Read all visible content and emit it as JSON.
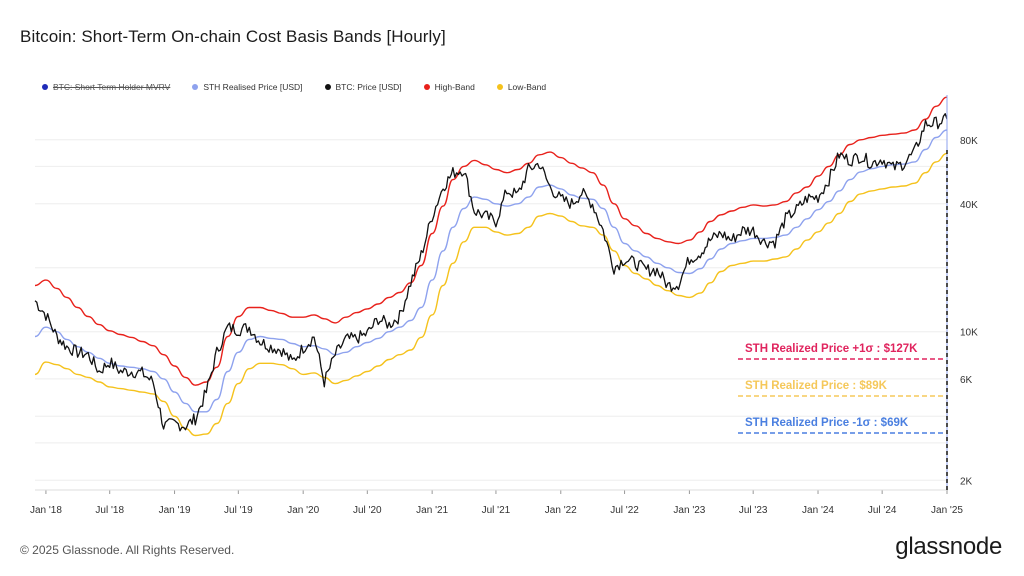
{
  "title": "Bitcoin: Short-Term On-chain Cost Basis Bands [Hourly]",
  "footer": "© 2025 Glassnode. All Rights Reserved.",
  "brand": "glassnode",
  "legend": [
    {
      "label": "BTC: Short Term Holder MVRV",
      "color": "#1f2bb8",
      "disabled": true
    },
    {
      "label": "STH Realised Price [USD]",
      "color": "#8ea2ee",
      "disabled": false
    },
    {
      "label": "BTC: Price [USD]",
      "color": "#111111",
      "disabled": false
    },
    {
      "label": "High-Band",
      "color": "#e8211b",
      "disabled": false
    },
    {
      "label": "Low-Band",
      "color": "#f5c21c",
      "disabled": false
    }
  ],
  "annotations": [
    {
      "text": "STH Realized Price +1σ : $127K",
      "color": "#e0245e"
    },
    {
      "text": "STH Realized Price  : $89K",
      "color": "#f5c85a"
    },
    {
      "text": "STH Realized Price -1σ : $69K",
      "color": "#4a7fe0"
    }
  ],
  "chart_data": {
    "type": "line",
    "title": "Bitcoin: Short-Term On-chain Cost Basis Bands [Hourly]",
    "yscale": "log",
    "ylim": [
      1800,
      130000
    ],
    "y_ticks": [
      {
        "value": 2000,
        "label": "2K"
      },
      {
        "value": 6000,
        "label": "6K"
      },
      {
        "value": 10000,
        "label": "10K"
      },
      {
        "value": 40000,
        "label": "40K"
      },
      {
        "value": 80000,
        "label": "80K"
      }
    ],
    "x_ticks": [
      "Jan '18",
      "Jul '18",
      "Jan '19",
      "Jul '19",
      "Jan '20",
      "Jul '20",
      "Jan '21",
      "Jul '21",
      "Jan '22",
      "Jul '22",
      "Jan '23",
      "Jul '23",
      "Jan '24",
      "Jul '24",
      "Jan '25"
    ],
    "x": [
      "2017-12",
      "2018-01",
      "2018-02",
      "2018-03",
      "2018-04",
      "2018-05",
      "2018-06",
      "2018-07",
      "2018-08",
      "2018-09",
      "2018-10",
      "2018-11",
      "2018-12",
      "2019-01",
      "2019-02",
      "2019-03",
      "2019-04",
      "2019-05",
      "2019-06",
      "2019-07",
      "2019-08",
      "2019-09",
      "2019-10",
      "2019-11",
      "2019-12",
      "2020-01",
      "2020-02",
      "2020-03",
      "2020-04",
      "2020-05",
      "2020-06",
      "2020-07",
      "2020-08",
      "2020-09",
      "2020-10",
      "2020-11",
      "2020-12",
      "2021-01",
      "2021-02",
      "2021-03",
      "2021-04",
      "2021-05",
      "2021-06",
      "2021-07",
      "2021-08",
      "2021-09",
      "2021-10",
      "2021-11",
      "2021-12",
      "2022-01",
      "2022-02",
      "2022-03",
      "2022-04",
      "2022-05",
      "2022-06",
      "2022-07",
      "2022-08",
      "2022-09",
      "2022-10",
      "2022-11",
      "2022-12",
      "2023-01",
      "2023-02",
      "2023-03",
      "2023-04",
      "2023-05",
      "2023-06",
      "2023-07",
      "2023-08",
      "2023-09",
      "2023-10",
      "2023-11",
      "2023-12",
      "2024-01",
      "2024-02",
      "2024-03",
      "2024-04",
      "2024-05",
      "2024-06",
      "2024-07",
      "2024-08",
      "2024-09",
      "2024-10",
      "2024-11",
      "2024-12",
      "2025-01"
    ],
    "series": [
      {
        "name": "BTC: Price [USD]",
        "color": "#111111",
        "values": [
          14000,
          12000,
          9500,
          8500,
          8000,
          7800,
          6500,
          7200,
          6500,
          6500,
          6400,
          5800,
          3600,
          3700,
          3600,
          3900,
          5200,
          8000,
          10500,
          10200,
          10500,
          9000,
          8500,
          8200,
          7200,
          8400,
          9500,
          5800,
          7800,
          9200,
          9300,
          9800,
          11500,
          10800,
          11800,
          17000,
          23000,
          35000,
          48000,
          56000,
          58000,
          37000,
          35000,
          33000,
          46000,
          44000,
          58000,
          62000,
          48000,
          42000,
          40000,
          45000,
          40000,
          30000,
          20000,
          22000,
          21000,
          19500,
          19500,
          16500,
          16800,
          22000,
          23500,
          27000,
          29000,
          27000,
          30000,
          30000,
          26500,
          26500,
          34000,
          37500,
          42500,
          43000,
          52000,
          68000,
          64000,
          67000,
          62000,
          65000,
          59000,
          62000,
          70000,
          95000,
          96000,
          100000
        ]
      },
      {
        "name": "STH Realised Price [USD]",
        "color": "#8ea2ee",
        "values": [
          9500,
          10500,
          10000,
          9200,
          8500,
          8000,
          7500,
          7100,
          6900,
          6800,
          6700,
          6500,
          6000,
          5200,
          4600,
          4200,
          4200,
          4800,
          6500,
          8000,
          9200,
          9500,
          9300,
          9200,
          8800,
          8500,
          8600,
          8300,
          7800,
          8000,
          8500,
          8900,
          9300,
          10000,
          10500,
          11300,
          13000,
          17500,
          24000,
          31000,
          38000,
          43000,
          42000,
          40000,
          39000,
          40000,
          43000,
          48000,
          49000,
          47000,
          44000,
          42500,
          42000,
          38000,
          31000,
          26000,
          24000,
          22500,
          21000,
          20000,
          19000,
          18800,
          19800,
          22000,
          24500,
          26000,
          26800,
          27500,
          27500,
          27800,
          28500,
          31000,
          34000,
          37500,
          41000,
          46000,
          52000,
          56500,
          58500,
          60000,
          61000,
          61500,
          63000,
          72000,
          82000,
          89000
        ]
      },
      {
        "name": "High-Band",
        "color": "#e8211b",
        "values": [
          16500,
          17500,
          16000,
          14500,
          13000,
          11800,
          10800,
          10100,
          9700,
          9400,
          9000,
          8600,
          7800,
          6900,
          6100,
          5600,
          5800,
          6800,
          9500,
          11800,
          13000,
          13000,
          12600,
          12200,
          11700,
          11700,
          12000,
          11500,
          11000,
          11700,
          12300,
          12800,
          13500,
          14500,
          15300,
          17000,
          20500,
          29000,
          39000,
          52000,
          60000,
          64000,
          61000,
          58000,
          56000,
          58000,
          62000,
          68000,
          70000,
          66000,
          62000,
          59000,
          56000,
          49000,
          40000,
          34000,
          31500,
          29000,
          27500,
          26500,
          26000,
          27000,
          29500,
          33000,
          35500,
          37000,
          38500,
          39500,
          39000,
          39500,
          41000,
          45000,
          48000,
          54000,
          60000,
          68000,
          76000,
          80000,
          82000,
          84000,
          85000,
          86000,
          89000,
          100000,
          115000,
          127000
        ]
      },
      {
        "name": "Low-Band",
        "color": "#f5c21c",
        "values": [
          6300,
          7200,
          7000,
          6700,
          6300,
          6100,
          5800,
          5500,
          5400,
          5300,
          5200,
          5100,
          4700,
          4000,
          3500,
          3250,
          3300,
          3700,
          4600,
          5700,
          6700,
          7100,
          7100,
          7000,
          6700,
          6300,
          6400,
          6100,
          5700,
          5900,
          6200,
          6500,
          6900,
          7400,
          7800,
          8200,
          9400,
          12000,
          16500,
          21000,
          26500,
          31000,
          31000,
          29500,
          28500,
          29000,
          31000,
          35000,
          36000,
          35000,
          33000,
          31500,
          31000,
          28500,
          24000,
          20500,
          18800,
          17700,
          16500,
          15600,
          14800,
          14500,
          15200,
          17000,
          19200,
          20500,
          21000,
          21500,
          21500,
          22000,
          22500,
          24500,
          27000,
          29500,
          32500,
          36000,
          41000,
          44500,
          46000,
          47000,
          48000,
          48500,
          50000,
          56000,
          63000,
          69000
        ]
      }
    ],
    "legend_position": "top-left",
    "grid": true
  }
}
